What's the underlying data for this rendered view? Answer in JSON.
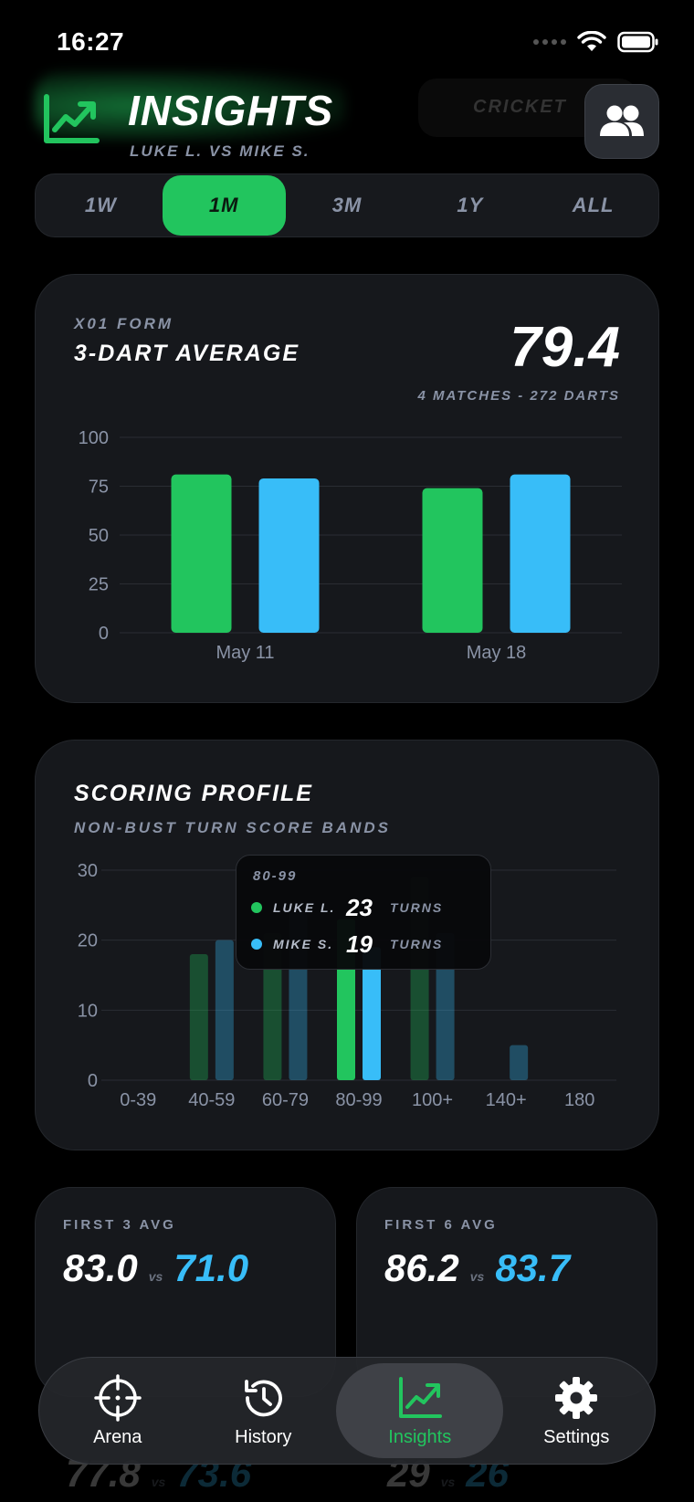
{
  "status_bar": {
    "time": "16:27"
  },
  "header": {
    "title": "INSIGHTS",
    "subtitle": "LUKE L. VS MIKE S.",
    "background_tab": "CRICKET"
  },
  "range_tabs": [
    {
      "label": "1W",
      "active": false
    },
    {
      "label": "1M",
      "active": true
    },
    {
      "label": "3M",
      "active": false
    },
    {
      "label": "1Y",
      "active": false
    },
    {
      "label": "ALL",
      "active": false
    }
  ],
  "form_card": {
    "kicker": "X01 FORM",
    "title": "3-DART AVERAGE",
    "value": "79.4",
    "meta": "4 MATCHES - 272 DARTS"
  },
  "scoring_card": {
    "title": "SCORING PROFILE",
    "subtitle": "NON-BUST TURN SCORE BANDS",
    "tooltip": {
      "band": "80-99",
      "rows": [
        {
          "name": "LUKE L.",
          "value": "23",
          "unit": "TURNS",
          "color": "#22c55e"
        },
        {
          "name": "MIKE S.",
          "value": "19",
          "unit": "TURNS",
          "color": "#38bdf8"
        }
      ]
    }
  },
  "stats": {
    "first3": {
      "label": "FIRST 3 AVG",
      "a": "83.0",
      "vs": "vs",
      "b": "71.0"
    },
    "first6": {
      "label": "FIRST 6 AVG",
      "a": "86.2",
      "vs": "vs",
      "b": "83.7"
    }
  },
  "ghost_stats": {
    "left": {
      "a": "77.8",
      "vs": "vs",
      "b": "73.6"
    },
    "right": {
      "a": "29",
      "vs": "vs",
      "b": "26"
    }
  },
  "tab_bar": [
    {
      "label": "Arena",
      "icon": "crosshair-icon",
      "active": false
    },
    {
      "label": "History",
      "icon": "history-icon",
      "active": false
    },
    {
      "label": "Insights",
      "icon": "chart-icon",
      "active": true
    },
    {
      "label": "Settings",
      "icon": "gear-icon",
      "active": false
    }
  ],
  "colors": {
    "luke": "#22c55e",
    "mike": "#38bdf8",
    "card": "#16181c"
  },
  "chart_data": [
    {
      "type": "bar",
      "categories": [
        "May 11",
        "May 18"
      ],
      "series": [
        {
          "values": [
            81,
            74
          ],
          "color": "#22c55e"
        },
        {
          "values": [
            79,
            81
          ],
          "color": "#38bdf8"
        }
      ],
      "ylim": [
        0,
        100
      ],
      "yticks": [
        0,
        25,
        50,
        75,
        100
      ],
      "grid": true
    },
    {
      "type": "bar",
      "categories": [
        "0-39",
        "40-59",
        "60-79",
        "80-99",
        "100+",
        "140+",
        "180"
      ],
      "series": [
        {
          "values": [
            0,
            18,
            21,
            23,
            29,
            0,
            0
          ],
          "color": "#22c55e"
        },
        {
          "values": [
            0,
            20,
            24,
            19,
            21,
            5,
            0
          ],
          "color": "#38bdf8"
        }
      ],
      "highlighted_category": "80-99",
      "ylim": [
        0,
        30
      ],
      "yticks": [
        0,
        10,
        20,
        30
      ],
      "grid": true
    }
  ]
}
